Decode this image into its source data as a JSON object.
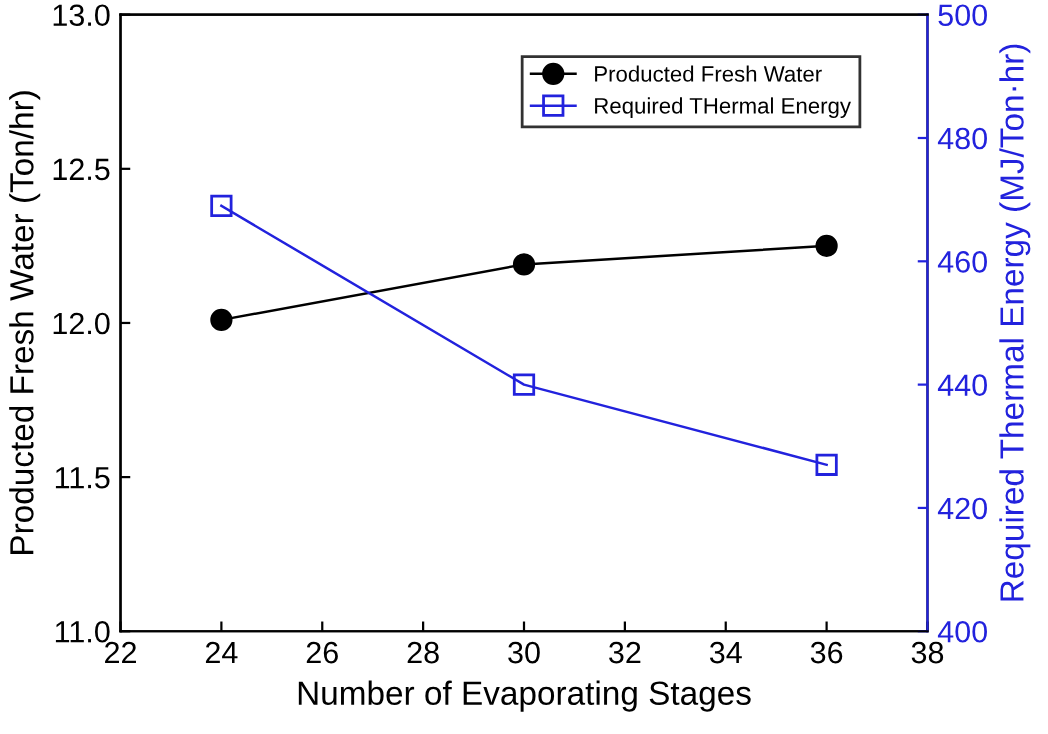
{
  "chart_data": {
    "type": "line",
    "x": [
      24,
      30,
      36
    ],
    "xlabel": "Number of Evaporating Stages",
    "ylabel": "Producted Fresh Water (Ton/hr)",
    "y2label": "Required Thermal Energy (MJ/Ton·hr)",
    "series": [
      {
        "name": "Producted Fresh Water",
        "color": "#000000",
        "values": [
          12.01,
          12.19,
          12.25
        ],
        "marker": "circle"
      },
      {
        "name": "Required THermal Energy",
        "color": "#2222dd",
        "values": [
          469,
          440,
          427
        ],
        "marker": "square",
        "axis": "y2"
      }
    ],
    "xlim": [
      22,
      38
    ],
    "xticks": [
      22,
      24,
      26,
      28,
      30,
      32,
      34,
      36,
      38
    ],
    "ylim": [
      11.0,
      13.0
    ],
    "yticks": [
      {
        "value": 11.0,
        "label": "11.0"
      },
      {
        "value": 11.5,
        "label": "11.5"
      },
      {
        "value": 12.0,
        "label": "12.0"
      },
      {
        "value": 12.5,
        "label": "12.5"
      },
      {
        "value": 13.0,
        "label": "13.0"
      }
    ],
    "y2lim": [
      400,
      500
    ],
    "y2ticks": [
      400,
      420,
      440,
      460,
      480,
      500
    ],
    "legend": "top right",
    "grid": false,
    "line_style": "solid"
  }
}
